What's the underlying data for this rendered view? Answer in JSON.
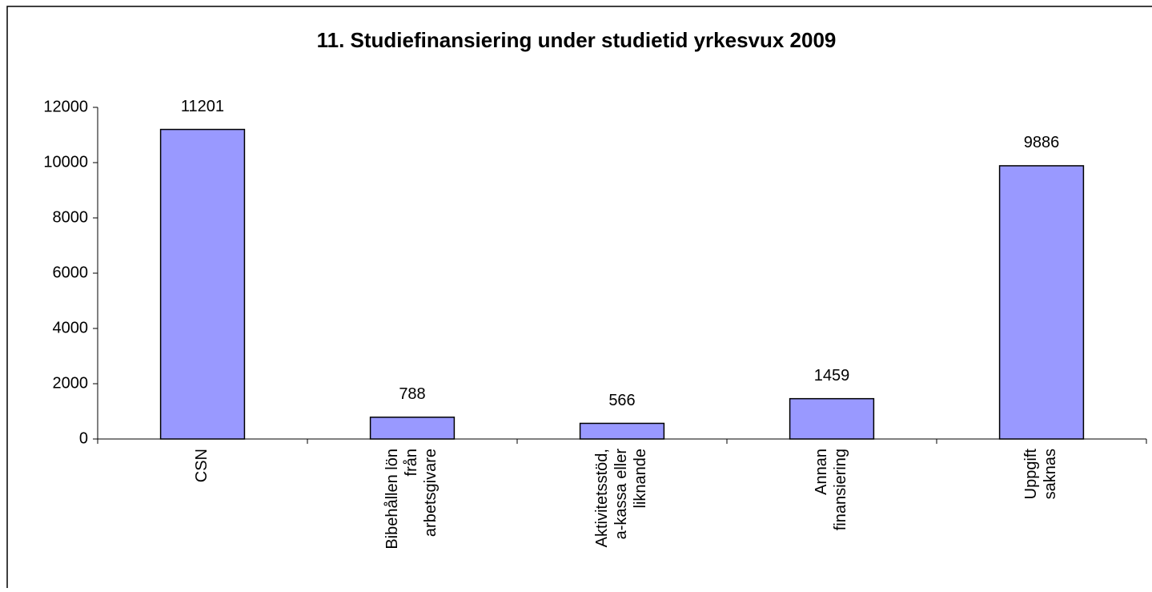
{
  "chart_data": {
    "type": "bar",
    "title": "11. Studiefinansiering under studietid yrkesvux 2009",
    "categories": [
      "CSN",
      "Bibehållen lön\nfrån\narbetsgivare",
      "Aktivitetsstöd,\na-kassa eller\nliknande",
      "Annan\nfinansiering",
      "Uppgift\nsaknas"
    ],
    "values": [
      11201,
      788,
      566,
      1459,
      9886
    ],
    "color": "#9999ff",
    "ylim": [
      0,
      12000
    ],
    "yticks": [
      0,
      2000,
      4000,
      6000,
      8000,
      10000,
      12000
    ]
  }
}
